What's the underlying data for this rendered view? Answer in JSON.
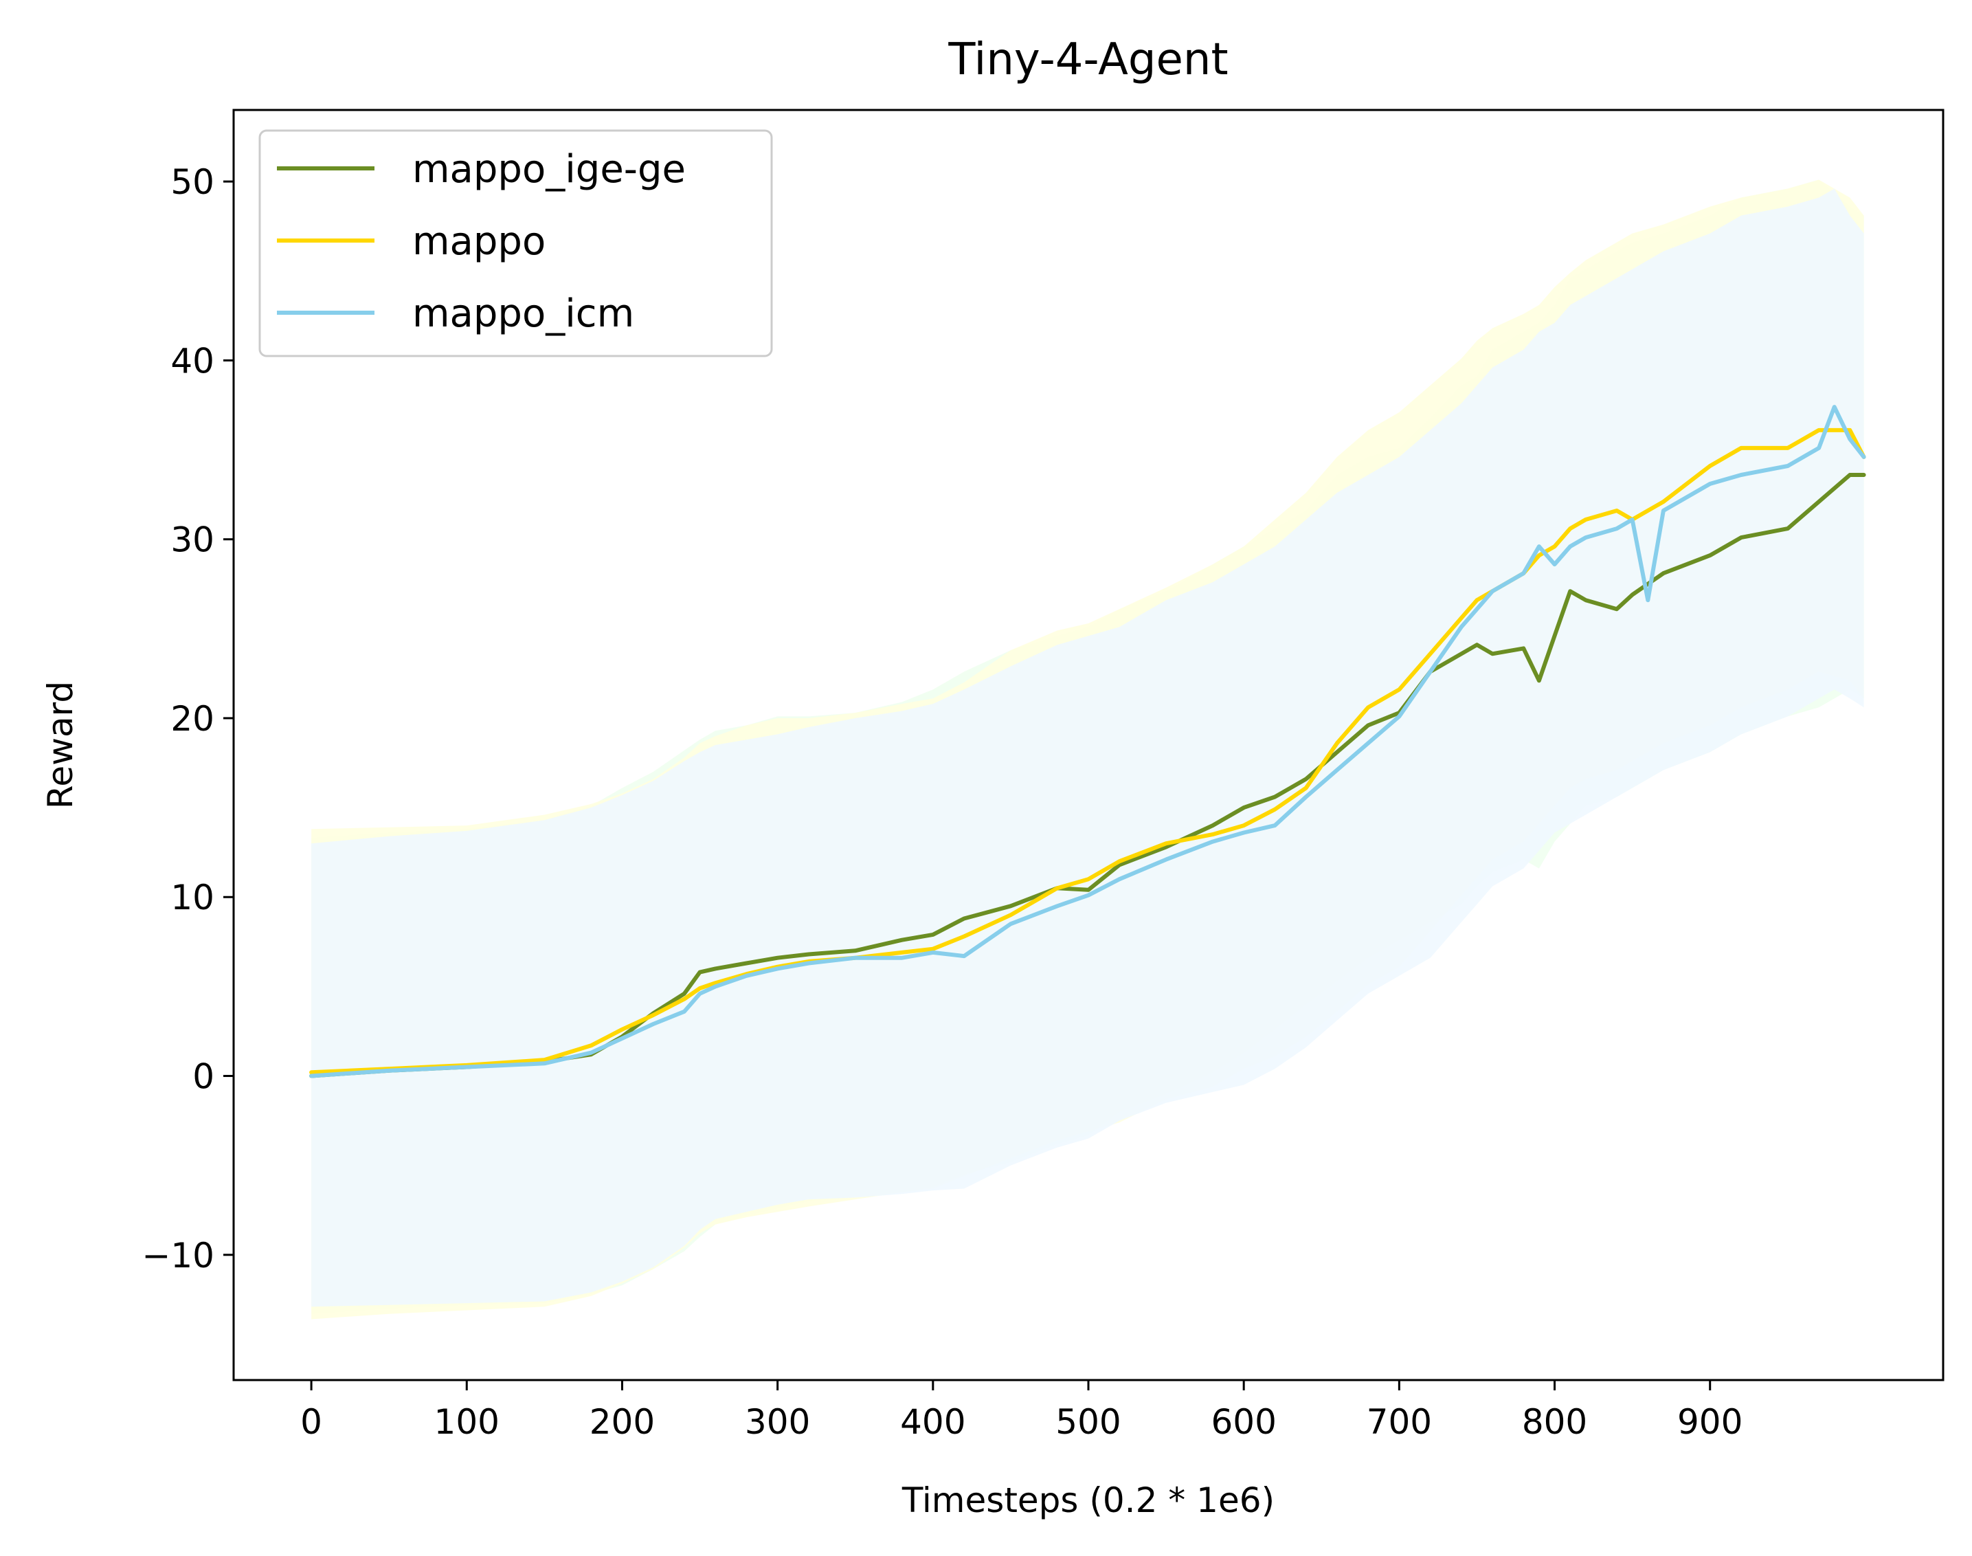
{
  "chart_data": {
    "type": "line",
    "title": "Tiny-4-Agent",
    "xlabel": "Timesteps (0.2 * 1e6)",
    "ylabel": "Reward",
    "xlim": [
      -50,
      1050
    ],
    "ylim": [
      -17,
      54
    ],
    "xticks": [
      0,
      100,
      200,
      300,
      400,
      500,
      600,
      700,
      800,
      900
    ],
    "yticks": [
      -10,
      0,
      10,
      20,
      30,
      40,
      50
    ],
    "ytick_labels": [
      "−10",
      "0",
      "10",
      "20",
      "30",
      "40",
      "50"
    ],
    "grid": false,
    "legend_position": "top-left",
    "series": [
      {
        "name": "mappo_ige-ge",
        "color": "#6b8e23",
        "band_color": "#f0fff0",
        "x": [
          0,
          50,
          100,
          150,
          180,
          200,
          220,
          240,
          250,
          260,
          280,
          300,
          320,
          350,
          380,
          400,
          420,
          450,
          480,
          500,
          520,
          550,
          580,
          600,
          620,
          640,
          660,
          680,
          700,
          720,
          740,
          750,
          760,
          780,
          790,
          800,
          810,
          820,
          840,
          850,
          870,
          900,
          920,
          950,
          970,
          990,
          999
        ],
        "values": [
          0.0,
          0.3,
          0.5,
          0.8,
          1.2,
          2.2,
          3.5,
          4.6,
          5.8,
          6.0,
          6.3,
          6.6,
          6.8,
          7.0,
          7.6,
          7.9,
          8.8,
          9.5,
          10.5,
          10.4,
          11.8,
          12.8,
          14.0,
          15.0,
          15.6,
          16.6,
          18.1,
          19.6,
          20.3,
          22.6,
          23.6,
          24.1,
          23.6,
          23.9,
          22.1,
          24.6,
          27.1,
          26.6,
          26.1,
          26.9,
          28.1,
          29.1,
          30.1,
          30.6,
          32.1,
          33.6,
          33.6
        ],
        "upper": [
          13.3,
          13.6,
          13.8,
          14.3,
          15.1,
          16.1,
          17.0,
          18.2,
          18.8,
          19.3,
          19.6,
          20.1,
          20.1,
          20.3,
          20.9,
          21.6,
          22.6,
          23.8,
          24.6,
          25.1,
          26.1,
          27.1,
          28.6,
          29.6,
          30.6,
          31.6,
          33.6,
          34.6,
          35.1,
          36.8,
          38.6,
          39.1,
          40.6,
          41.6,
          42.1,
          43.1,
          44.6,
          45.1,
          46.1,
          46.6,
          47.1,
          48.1,
          49.1,
          49.6,
          50.1,
          48.6,
          48.1
        ],
        "lower": [
          -13.3,
          -13.0,
          -12.8,
          -12.7,
          -12.2,
          -11.7,
          -10.8,
          -9.8,
          -9.0,
          -8.3,
          -7.8,
          -7.4,
          -7.0,
          -6.8,
          -6.5,
          -6.2,
          -5.5,
          -4.8,
          -3.8,
          -3.3,
          -2.0,
          -1.0,
          0.2,
          1.3,
          2.6,
          4.0,
          5.3,
          6.6,
          7.6,
          8.6,
          9.6,
          10.6,
          11.4,
          12.1,
          11.6,
          13.1,
          14.1,
          15.1,
          15.6,
          16.1,
          17.1,
          18.1,
          19.1,
          20.1,
          20.6,
          21.6,
          21.1
        ]
      },
      {
        "name": "mappo",
        "color": "#ffd700",
        "band_color": "#ffffe0",
        "x": [
          0,
          50,
          100,
          150,
          180,
          200,
          220,
          240,
          250,
          260,
          280,
          300,
          320,
          350,
          380,
          400,
          420,
          450,
          480,
          500,
          520,
          550,
          580,
          600,
          620,
          640,
          660,
          680,
          700,
          720,
          740,
          750,
          760,
          780,
          790,
          800,
          810,
          820,
          840,
          850,
          870,
          900,
          920,
          950,
          970,
          990,
          999
        ],
        "values": [
          0.2,
          0.4,
          0.6,
          0.9,
          1.7,
          2.6,
          3.4,
          4.3,
          4.9,
          5.2,
          5.7,
          6.1,
          6.4,
          6.6,
          6.9,
          7.1,
          7.8,
          9.0,
          10.5,
          11.0,
          12.0,
          13.0,
          13.5,
          14.0,
          14.9,
          16.1,
          18.6,
          20.6,
          21.6,
          23.6,
          25.6,
          26.6,
          27.1,
          28.1,
          29.1,
          29.6,
          30.6,
          31.1,
          31.6,
          31.1,
          32.1,
          34.1,
          35.1,
          35.1,
          36.1,
          36.1,
          34.6
        ],
        "upper": [
          13.8,
          13.9,
          14.0,
          14.6,
          15.2,
          15.8,
          16.6,
          17.8,
          18.6,
          19.0,
          19.6,
          20.0,
          20.0,
          20.3,
          20.8,
          21.1,
          22.0,
          23.8,
          24.9,
          25.3,
          26.1,
          27.3,
          28.6,
          29.6,
          31.1,
          32.6,
          34.6,
          36.1,
          37.1,
          38.6,
          40.1,
          41.1,
          41.8,
          42.6,
          43.1,
          44.1,
          44.9,
          45.6,
          46.6,
          47.1,
          47.6,
          48.6,
          49.1,
          49.6,
          50.1,
          49.1,
          48.1
        ],
        "lower": [
          -13.6,
          -13.3,
          -13.1,
          -12.9,
          -12.3,
          -11.6,
          -10.8,
          -9.6,
          -8.8,
          -8.3,
          -7.9,
          -7.6,
          -7.3,
          -6.9,
          -6.5,
          -6.3,
          -5.6,
          -4.6,
          -3.6,
          -3.1,
          -2.6,
          -1.3,
          -0.6,
          0.4,
          1.1,
          2.2,
          3.6,
          5.1,
          6.1,
          8.1,
          10.1,
          11.1,
          12.1,
          13.1,
          14.1,
          15.1,
          16.1,
          16.6,
          17.1,
          17.6,
          18.6,
          19.6,
          20.6,
          21.6,
          22.6,
          22.1,
          21.1
        ]
      },
      {
        "name": "mappo_icm",
        "color": "#87ceeb",
        "band_color": "#f0f8ff",
        "x": [
          0,
          50,
          100,
          150,
          180,
          200,
          220,
          240,
          250,
          260,
          280,
          300,
          320,
          350,
          380,
          400,
          420,
          450,
          480,
          500,
          520,
          550,
          580,
          600,
          620,
          640,
          660,
          680,
          700,
          720,
          740,
          750,
          760,
          780,
          790,
          800,
          810,
          820,
          840,
          850,
          860,
          870,
          900,
          920,
          950,
          970,
          980,
          990,
          999
        ],
        "values": [
          0.0,
          0.3,
          0.5,
          0.7,
          1.3,
          2.1,
          2.9,
          3.6,
          4.6,
          5.0,
          5.6,
          6.0,
          6.3,
          6.6,
          6.6,
          6.9,
          6.7,
          8.5,
          9.5,
          10.1,
          11.0,
          12.1,
          13.1,
          13.6,
          14.0,
          15.6,
          17.1,
          18.6,
          20.1,
          22.6,
          25.1,
          26.1,
          27.1,
          28.1,
          29.6,
          28.6,
          29.6,
          30.1,
          30.6,
          31.1,
          26.6,
          31.6,
          33.1,
          33.6,
          34.1,
          35.1,
          37.4,
          35.6,
          34.6
        ],
        "upper": [
          13.0,
          13.4,
          13.7,
          14.3,
          15.0,
          15.7,
          16.5,
          17.6,
          18.1,
          18.5,
          18.8,
          19.1,
          19.5,
          20.0,
          20.4,
          20.8,
          21.6,
          22.9,
          24.1,
          24.6,
          25.1,
          26.6,
          27.6,
          28.6,
          29.6,
          31.1,
          32.6,
          33.6,
          34.6,
          36.1,
          37.6,
          38.6,
          39.6,
          40.6,
          41.6,
          42.1,
          43.1,
          43.6,
          44.6,
          45.1,
          45.6,
          46.1,
          47.1,
          48.1,
          48.6,
          49.1,
          49.6,
          48.1,
          47.1
        ],
        "lower": [
          -12.9,
          -12.8,
          -12.7,
          -12.6,
          -12.1,
          -11.5,
          -10.7,
          -9.5,
          -8.6,
          -8.0,
          -7.6,
          -7.2,
          -6.9,
          -6.8,
          -6.6,
          -6.4,
          -6.3,
          -5.0,
          -4.0,
          -3.5,
          -2.5,
          -1.5,
          -0.9,
          -0.5,
          0.4,
          1.6,
          3.1,
          4.6,
          5.6,
          6.6,
          8.6,
          9.6,
          10.6,
          11.6,
          12.6,
          13.6,
          14.1,
          14.6,
          15.6,
          16.1,
          16.6,
          17.1,
          18.1,
          19.1,
          20.1,
          21.1,
          21.6,
          21.1,
          20.6
        ]
      }
    ]
  }
}
